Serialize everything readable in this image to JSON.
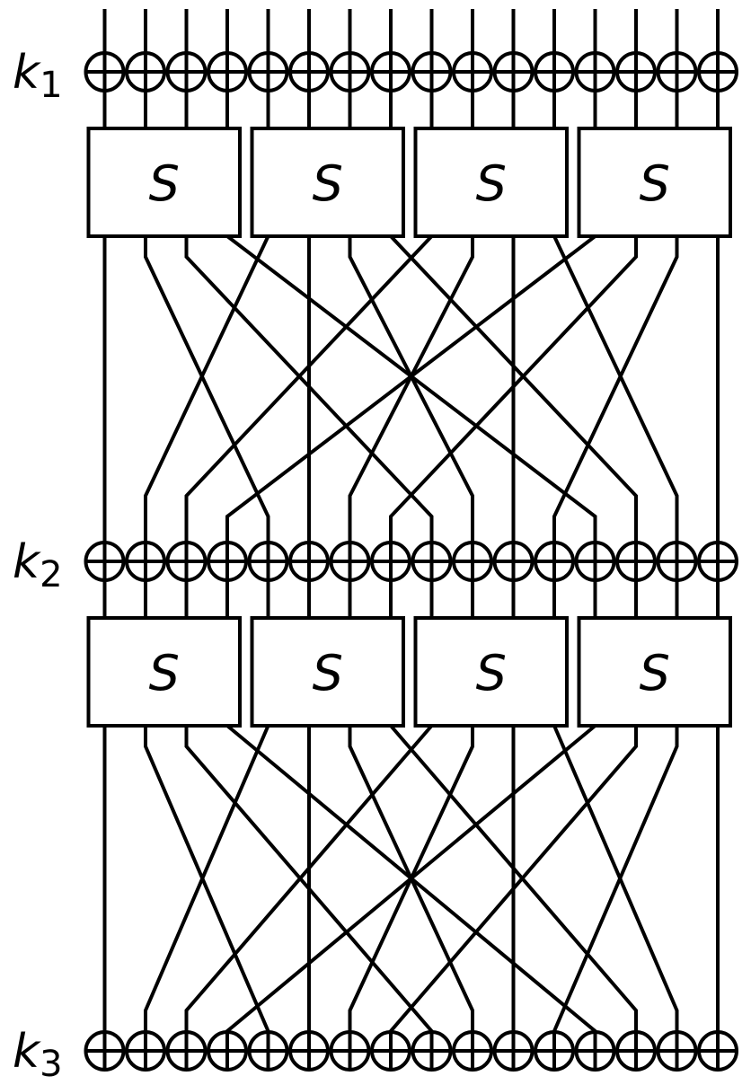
{
  "diagram": {
    "type": "substitution-permutation-network",
    "bits": 16,
    "rounds": 2,
    "sbox_count": 4,
    "sbox_label": "S",
    "key_labels": [
      {
        "letter": "k",
        "index": "1"
      },
      {
        "letter": "k",
        "index": "2"
      },
      {
        "letter": "k",
        "index": "3"
      }
    ],
    "permutation": "wire i goes to wire 4*(i mod 4) + floor(i/4)",
    "stroke_color": "#000000",
    "background_color": "#ffffff"
  }
}
